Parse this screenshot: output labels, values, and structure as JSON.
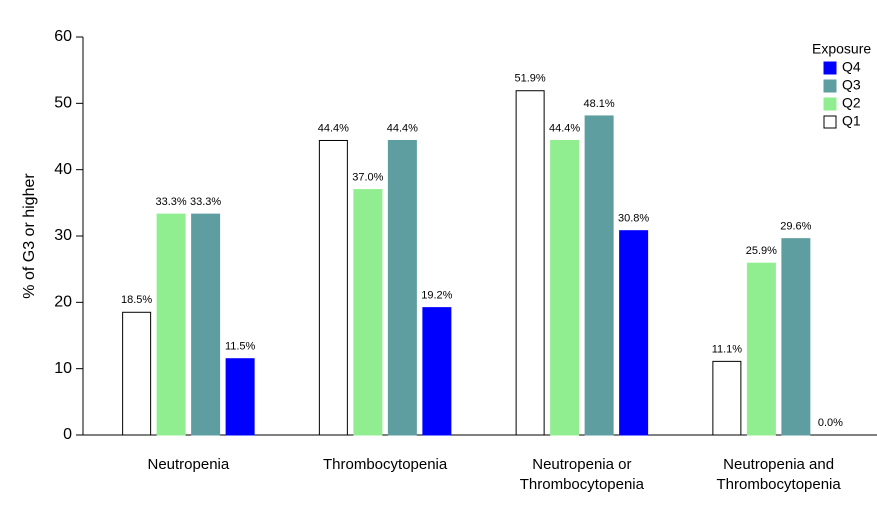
{
  "chart_data": {
    "type": "bar",
    "y_label": "% of G3 or higher",
    "categories": [
      [
        "Neutropenia"
      ],
      [
        "Thrombocytopenia"
      ],
      [
        "Neutropenia or",
        "Thrombocytopenia"
      ],
      [
        "Neutropenia and",
        "Thrombocytopenia"
      ]
    ],
    "series": [
      {
        "name": "Q1",
        "color": "#ffffff",
        "values": [
          18.5,
          44.4,
          51.9,
          11.1
        ],
        "value_labels": [
          "18.5%",
          "44.4%",
          "51.9%",
          "11.1%"
        ]
      },
      {
        "name": "Q2",
        "color": "#90ee90",
        "values": [
          33.3,
          37.0,
          44.4,
          25.9
        ],
        "value_labels": [
          "33.3%",
          "37.0%",
          "44.4%",
          "25.9%"
        ]
      },
      {
        "name": "Q3",
        "color": "#5f9ea0",
        "values": [
          33.3,
          44.4,
          48.1,
          29.6
        ],
        "value_labels": [
          "33.3%",
          "44.4%",
          "48.1%",
          "29.6%"
        ]
      },
      {
        "name": "Q4",
        "color": "#0000ff",
        "values": [
          11.5,
          19.2,
          30.8,
          0.0
        ],
        "value_labels": [
          "11.5%",
          "19.2%",
          "30.8%",
          "0.0%"
        ]
      }
    ],
    "legend_title": "Exposure",
    "legend_position": "top-right",
    "legend_reversed": true,
    "ylim": [
      0,
      60
    ],
    "yticks": [
      0,
      10,
      20,
      30,
      40,
      50,
      60
    ]
  }
}
